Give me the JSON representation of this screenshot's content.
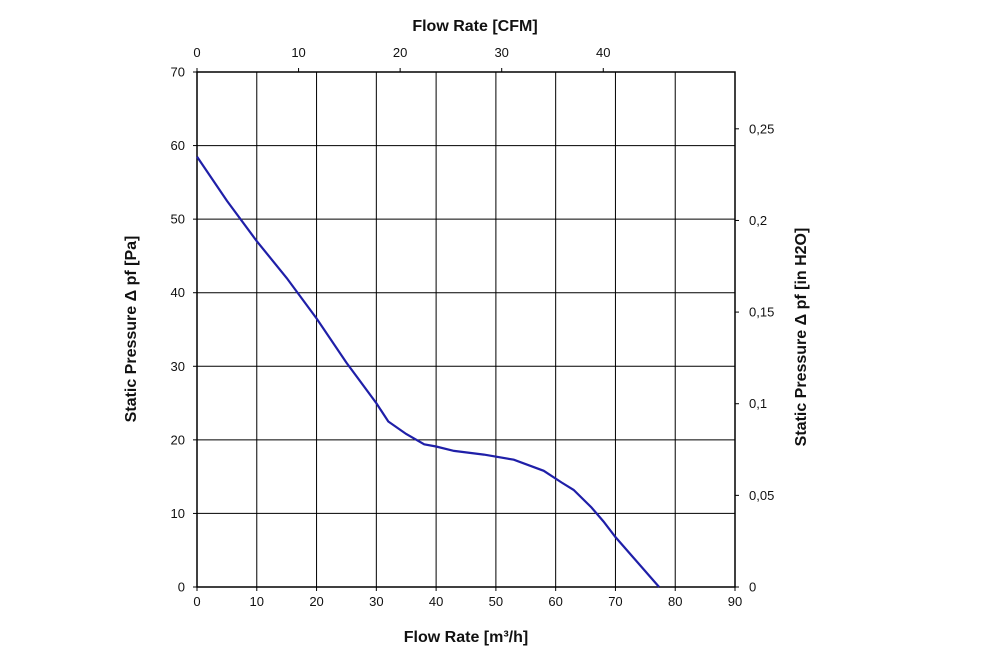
{
  "chart_data": {
    "type": "line",
    "x_bottom": {
      "label": "Flow Rate [m³/h]",
      "range": [
        0,
        90
      ],
      "ticks": [
        "0",
        "10",
        "20",
        "30",
        "40",
        "50",
        "60",
        "70",
        "80",
        "90"
      ]
    },
    "x_top": {
      "label": "Flow Rate [CFM]",
      "range": [
        0,
        52.97
      ],
      "ticks": [
        "0",
        "10",
        "20",
        "30",
        "40"
      ]
    },
    "y_left": {
      "label": "Static Pressure Δ pf [Pa]",
      "range": [
        0,
        70
      ],
      "ticks": [
        "0",
        "10",
        "20",
        "30",
        "40",
        "50",
        "60",
        "70"
      ]
    },
    "y_right": {
      "label": "Static Pressure Δ pf [in H2O]",
      "range": [
        0,
        0.281
      ],
      "ticks": [
        "0",
        "0,05",
        "0,1",
        "0,15",
        "0,2",
        "0,25"
      ]
    },
    "grid": true,
    "series": [
      {
        "color": "#1f1fa8",
        "points": [
          [
            0,
            58.5
          ],
          [
            5,
            52.5
          ],
          [
            10,
            47
          ],
          [
            15,
            42
          ],
          [
            20,
            36.5
          ],
          [
            25,
            30.5
          ],
          [
            30,
            25
          ],
          [
            32,
            22.5
          ],
          [
            35,
            20.8
          ],
          [
            38,
            19.4
          ],
          [
            40,
            19.1
          ],
          [
            43,
            18.5
          ],
          [
            48,
            18.0
          ],
          [
            53,
            17.3
          ],
          [
            58,
            15.8
          ],
          [
            61,
            14.2
          ],
          [
            63,
            13.2
          ],
          [
            66,
            10.8
          ],
          [
            68,
            8.9
          ],
          [
            70,
            6.8
          ],
          [
            73,
            4.0
          ],
          [
            77.3,
            0
          ]
        ]
      }
    ]
  }
}
